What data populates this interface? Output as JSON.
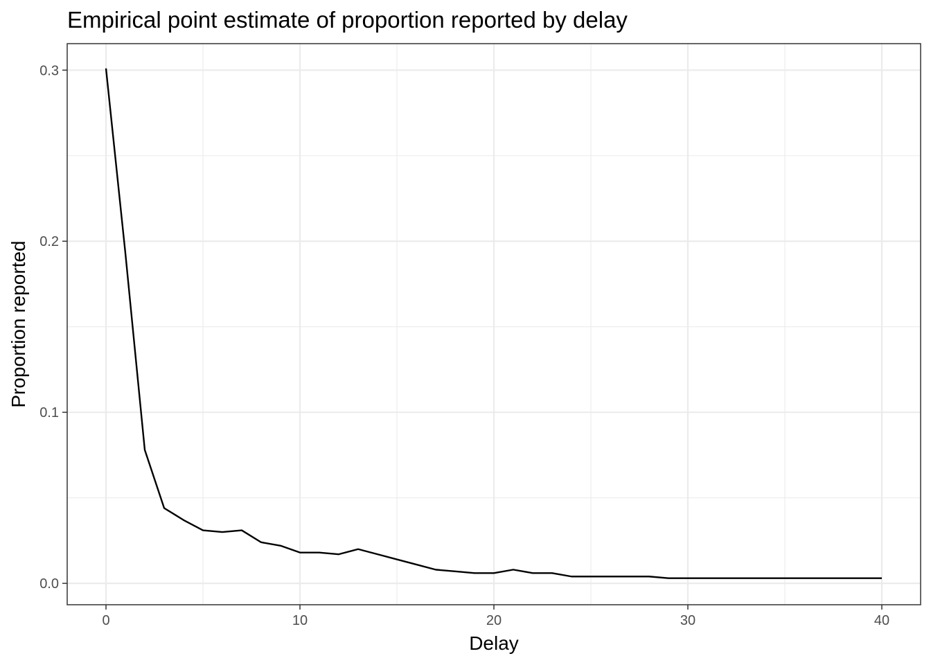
{
  "chart_data": {
    "type": "line",
    "title": "Empirical point estimate of proportion reported by delay",
    "xlabel": "Delay",
    "ylabel": "Proportion reported",
    "xlim": [
      -2,
      42
    ],
    "ylim": [
      -0.0125,
      0.3155
    ],
    "xticks": [
      0,
      10,
      20,
      30,
      40
    ],
    "xtick_labels": [
      "0",
      "10",
      "20",
      "30",
      "40"
    ],
    "yticks": [
      0.0,
      0.1,
      0.2,
      0.3
    ],
    "ytick_labels": [
      "0.0",
      "0.1",
      "0.2",
      "0.3"
    ],
    "grid": true,
    "legend": "none",
    "color": "#000000",
    "x": [
      0,
      1,
      2,
      3,
      4,
      5,
      6,
      7,
      8,
      9,
      10,
      11,
      12,
      13,
      14,
      15,
      16,
      17,
      18,
      19,
      20,
      21,
      22,
      23,
      24,
      25,
      26,
      27,
      28,
      29,
      30,
      31,
      32,
      33,
      34,
      35,
      36,
      37,
      38,
      39,
      40
    ],
    "y": [
      0.301,
      0.193,
      0.078,
      0.044,
      0.037,
      0.031,
      0.03,
      0.031,
      0.024,
      0.022,
      0.018,
      0.018,
      0.017,
      0.02,
      0.017,
      0.014,
      0.011,
      0.008,
      0.007,
      0.006,
      0.006,
      0.008,
      0.006,
      0.006,
      0.004,
      0.004,
      0.004,
      0.004,
      0.004,
      0.003,
      0.003,
      0.003,
      0.003,
      0.003,
      0.003,
      0.003,
      0.003,
      0.003,
      0.003,
      0.003,
      0.003
    ]
  }
}
